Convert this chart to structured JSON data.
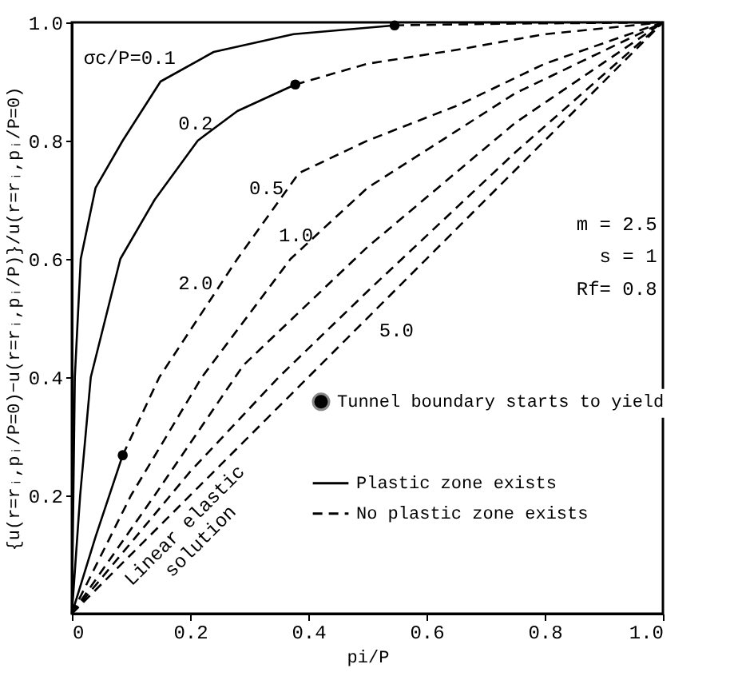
{
  "chart_data": {
    "type": "line",
    "xlabel": "pi/P",
    "ylabel": "{u(r=rᵢ,pᵢ/P=0)−u(r=rᵢ,pᵢ/P)}/u(r=rᵢ,pᵢ/P=0)",
    "xlim": [
      0,
      1
    ],
    "ylim": [
      0,
      1
    ],
    "xticks": [
      0,
      0.2,
      0.4,
      0.6,
      0.8,
      {
        "value": 1,
        "label": "1.0"
      }
    ],
    "yticks": [
      0.2,
      0.4,
      0.6,
      0.8,
      {
        "value": 1,
        "label": "1.0"
      }
    ],
    "grid": false,
    "legend": "bottom right",
    "series": [
      {
        "name": "Plastic zone exists",
        "type": "line",
        "line_style": "solid",
        "color": "#000000",
        "x": [
          0,
          0.005,
          0.015,
          0.04,
          0.086,
          0.15,
          0.24,
          0.375,
          0.546
        ],
        "values": [
          0,
          0.4,
          0.6,
          0.72,
          0.8,
          0.9,
          0.95,
          0.98,
          0.995
        ]
      },
      {
        "name": "No plastic zone exists",
        "type": "line",
        "line_style": "dashed",
        "color": "#000000",
        "x": [
          0.546,
          0.75,
          1
        ],
        "values": [
          0.995,
          0.998,
          1
        ]
      },
      {
        "type": "line",
        "line_style": "solid",
        "color": "#000000",
        "x": [
          0,
          0.014,
          0.032,
          0.082,
          0.14,
          0.213,
          0.28,
          0.378
        ],
        "values": [
          0,
          0.2,
          0.4,
          0.6,
          0.7,
          0.8,
          0.85,
          0.895
        ]
      },
      {
        "type": "line",
        "line_style": "dashed",
        "color": "#000000",
        "x": [
          0.378,
          0.5,
          0.654,
          0.8,
          1
        ],
        "values": [
          0.895,
          0.93,
          0.954,
          0.98,
          1
        ]
      },
      {
        "type": "line",
        "line_style": "solid",
        "color": "#000000",
        "x": [
          0,
          0.04,
          0.086
        ],
        "values": [
          0,
          0.13,
          0.268
        ]
      },
      {
        "type": "line",
        "line_style": "dashed",
        "color": "#000000",
        "x": [
          0.086,
          0.148,
          0.28,
          0.384,
          0.5,
          0.654,
          0.8,
          1
        ],
        "values": [
          0.268,
          0.4,
          0.6,
          0.745,
          0.8,
          0.86,
          0.93,
          1
        ]
      },
      {
        "type": "line",
        "line_style": "dashed",
        "color": "#000000",
        "x": [
          0,
          0.1,
          0.22,
          0.37,
          0.5,
          0.75,
          1
        ],
        "values": [
          0,
          0.2,
          0.4,
          0.6,
          0.72,
          0.88,
          1
        ]
      },
      {
        "type": "line",
        "line_style": "dashed",
        "color": "#000000",
        "x": [
          0,
          0.14,
          0.29,
          0.5,
          0.75,
          1
        ],
        "values": [
          0,
          0.2,
          0.42,
          0.62,
          0.83,
          1
        ]
      },
      {
        "type": "line",
        "line_style": "dashed",
        "color": "#000000",
        "x": [
          0,
          0.2,
          0.35,
          0.5,
          0.75,
          1
        ],
        "values": [
          0,
          0.24,
          0.4,
          0.545,
          0.78,
          1
        ]
      },
      {
        "type": "line",
        "line_style": "dashed",
        "color": "#000000",
        "x": [
          0,
          1
        ],
        "values": [
          0,
          1
        ]
      },
      {
        "name": "Tunnel boundary starts to yield",
        "type": "scatter",
        "marker": "circle",
        "color": "#000000",
        "x": [
          0.546,
          0.378,
          0.086
        ],
        "values": [
          0.995,
          0.895,
          0.268
        ]
      }
    ],
    "annotations": [
      "σc/P=0.1",
      "0.2",
      "0.5",
      "1.0",
      "2.0",
      "5.0",
      "m = 2.5",
      "s = 1",
      "Rf= 0.8",
      "Linear elastic\nsolution"
    ]
  }
}
